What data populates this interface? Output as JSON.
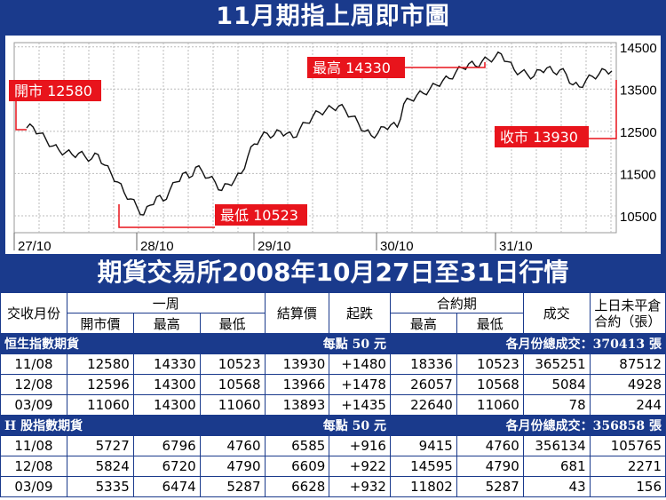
{
  "title": "11月期指上周即市圖",
  "subtitle": "期貨交易所2008年10月27日至31日行情",
  "chart_data": {
    "type": "line",
    "x_ticks": [
      "27/10",
      "28/10",
      "29/10",
      "30/10",
      "31/10"
    ],
    "y_ticks": [
      14500,
      13500,
      12500,
      11500,
      10500
    ],
    "ylim": [
      10100,
      14600
    ],
    "series": [
      {
        "values": [
          12580,
          12600,
          12450,
          12300,
          12150,
          12050,
          12000,
          11950,
          11980,
          11900,
          11850,
          11950,
          11700,
          11500,
          11300,
          11050,
          10900,
          10700,
          10523,
          10750,
          10950,
          10850,
          11100,
          11300,
          11500,
          11400,
          11650,
          11550,
          11400,
          11300,
          11100,
          11250,
          11350,
          11500,
          11900,
          12200,
          12350,
          12450,
          12400,
          12500,
          12450,
          12350,
          12550,
          12700,
          12850,
          12950,
          13000,
          13050,
          13100,
          13000,
          12850,
          12700,
          12500,
          12400,
          12450,
          12600,
          12650,
          12600,
          13150,
          13250,
          13350,
          13400,
          13500,
          13600,
          13700,
          13750,
          13900,
          14000,
          14100,
          14050,
          14150,
          14200,
          14250,
          14330,
          14150,
          13950,
          13900,
          13850,
          13800,
          13950,
          14000,
          13900,
          13950,
          13850,
          13600,
          13550,
          13700,
          13800,
          13850,
          13950,
          13930
        ]
      }
    ],
    "annotations": [
      {
        "label": "開市 12580"
      },
      {
        "label": "最高 14330"
      },
      {
        "label": "收市 13930"
      },
      {
        "label": "最低 10523"
      }
    ]
  },
  "table": {
    "headers": {
      "month": "交收月份",
      "week": "一周",
      "open": "開市價",
      "high": "最高",
      "low": "最低",
      "settle": "結算價",
      "change": "起跌",
      "contract": "合約期",
      "c_high": "最高",
      "c_low": "最低",
      "volume": "成交",
      "oi": "上日未平倉合約（張）"
    },
    "hsi": {
      "name": "恒生指數期貨",
      "point": "每點 50 元",
      "total": "各月份總成交：370413 張",
      "rows": [
        [
          "11/08",
          "12580",
          "14330",
          "10523",
          "13930",
          "+1480",
          "18336",
          "10523",
          "365251",
          "87512"
        ],
        [
          "12/08",
          "12596",
          "14300",
          "10568",
          "13966",
          "+1478",
          "26057",
          "10568",
          "5084",
          "4928"
        ],
        [
          "03/09",
          "11060",
          "14300",
          "11060",
          "13893",
          "+1435",
          "22640",
          "11060",
          "78",
          "244"
        ]
      ]
    },
    "hshare": {
      "name": "H 股指數期貨",
      "point": "每點 50 元",
      "total": "各月份總成交：356858 張",
      "rows": [
        [
          "11/08",
          "5727",
          "6796",
          "4760",
          "6585",
          "+916",
          "9415",
          "4760",
          "356134",
          "105765"
        ],
        [
          "12/08",
          "5824",
          "6720",
          "4790",
          "6609",
          "+922",
          "14595",
          "4790",
          "681",
          "2271"
        ],
        [
          "03/09",
          "5335",
          "6474",
          "5287",
          "6628",
          "+932",
          "11802",
          "5287",
          "43",
          "156"
        ]
      ]
    }
  }
}
